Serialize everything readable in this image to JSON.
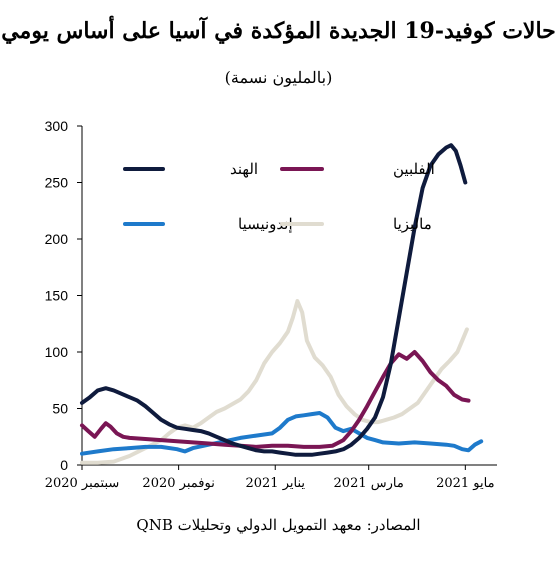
{
  "chart_data": {
    "type": "line",
    "title": "حالات كوفيد-19 الجديدة المؤكدة في آسيا على أساس يومي",
    "subtitle": "(بالمليون نسمة)",
    "source": "المصادر: معهد التمويل الدولي وتحليلات QNB",
    "xlabel": "",
    "ylabel": "",
    "ylim": [
      0,
      300
    ],
    "yticks": [
      0,
      50,
      100,
      150,
      200,
      250,
      300
    ],
    "xticks": [
      {
        "x": 0,
        "label": "سبتمبر 2020"
      },
      {
        "x": 61,
        "label": "نوفمبر 2020"
      },
      {
        "x": 122,
        "label": "يناير 2021"
      },
      {
        "x": 181,
        "label": "مارس 2021"
      },
      {
        "x": 242,
        "label": "مايو 2021"
      }
    ],
    "x_domain": [
      0,
      262
    ],
    "legend_placement": "top",
    "series": [
      {
        "name": "الهند",
        "color": "#0f1b3d",
        "points": [
          [
            0,
            55
          ],
          [
            5,
            60
          ],
          [
            10,
            66
          ],
          [
            15,
            68
          ],
          [
            20,
            66
          ],
          [
            25,
            63
          ],
          [
            30,
            60
          ],
          [
            35,
            57
          ],
          [
            40,
            52
          ],
          [
            45,
            46
          ],
          [
            50,
            40
          ],
          [
            55,
            36
          ],
          [
            60,
            33
          ],
          [
            65,
            32
          ],
          [
            70,
            31
          ],
          [
            75,
            30
          ],
          [
            80,
            28
          ],
          [
            85,
            25
          ],
          [
            90,
            22
          ],
          [
            95,
            19
          ],
          [
            100,
            17
          ],
          [
            105,
            15
          ],
          [
            110,
            13
          ],
          [
            115,
            12
          ],
          [
            120,
            12
          ],
          [
            125,
            11
          ],
          [
            130,
            10
          ],
          [
            135,
            9
          ],
          [
            140,
            9
          ],
          [
            145,
            9
          ],
          [
            150,
            10
          ],
          [
            155,
            11
          ],
          [
            160,
            12
          ],
          [
            165,
            14
          ],
          [
            170,
            18
          ],
          [
            175,
            24
          ],
          [
            180,
            32
          ],
          [
            185,
            42
          ],
          [
            190,
            60
          ],
          [
            195,
            90
          ],
          [
            200,
            130
          ],
          [
            205,
            170
          ],
          [
            210,
            210
          ],
          [
            215,
            245
          ],
          [
            220,
            265
          ],
          [
            225,
            275
          ],
          [
            230,
            281
          ],
          [
            233,
            283
          ],
          [
            236,
            278
          ],
          [
            239,
            265
          ],
          [
            242,
            250
          ]
        ]
      },
      {
        "name": "الفلبين",
        "color": "#7a1654",
        "points": [
          [
            0,
            35
          ],
          [
            4,
            30
          ],
          [
            8,
            25
          ],
          [
            12,
            32
          ],
          [
            15,
            37
          ],
          [
            18,
            34
          ],
          [
            22,
            28
          ],
          [
            26,
            25
          ],
          [
            30,
            24
          ],
          [
            40,
            23
          ],
          [
            50,
            22
          ],
          [
            60,
            21
          ],
          [
            70,
            20
          ],
          [
            80,
            19
          ],
          [
            90,
            18
          ],
          [
            100,
            17
          ],
          [
            110,
            16
          ],
          [
            120,
            17
          ],
          [
            130,
            17
          ],
          [
            140,
            16
          ],
          [
            150,
            16
          ],
          [
            158,
            17
          ],
          [
            165,
            22
          ],
          [
            170,
            30
          ],
          [
            175,
            40
          ],
          [
            180,
            52
          ],
          [
            185,
            65
          ],
          [
            190,
            78
          ],
          [
            195,
            90
          ],
          [
            200,
            98
          ],
          [
            205,
            94
          ],
          [
            210,
            100
          ],
          [
            215,
            92
          ],
          [
            220,
            82
          ],
          [
            225,
            75
          ],
          [
            230,
            70
          ],
          [
            235,
            62
          ],
          [
            240,
            58
          ],
          [
            244,
            57
          ]
        ]
      },
      {
        "name": "إندونيسيا",
        "color": "#1e7acb",
        "points": [
          [
            0,
            10
          ],
          [
            10,
            12
          ],
          [
            20,
            14
          ],
          [
            30,
            15
          ],
          [
            40,
            16
          ],
          [
            50,
            16
          ],
          [
            60,
            14
          ],
          [
            65,
            12
          ],
          [
            70,
            15
          ],
          [
            80,
            18
          ],
          [
            90,
            21
          ],
          [
            100,
            24
          ],
          [
            110,
            26
          ],
          [
            120,
            28
          ],
          [
            125,
            33
          ],
          [
            130,
            40
          ],
          [
            135,
            43
          ],
          [
            140,
            44
          ],
          [
            145,
            45
          ],
          [
            150,
            46
          ],
          [
            155,
            42
          ],
          [
            160,
            33
          ],
          [
            165,
            30
          ],
          [
            170,
            32
          ],
          [
            175,
            28
          ],
          [
            180,
            24
          ],
          [
            185,
            22
          ],
          [
            190,
            20
          ],
          [
            200,
            19
          ],
          [
            210,
            20
          ],
          [
            220,
            19
          ],
          [
            230,
            18
          ],
          [
            235,
            17
          ],
          [
            240,
            14
          ],
          [
            244,
            13
          ],
          [
            248,
            18
          ],
          [
            252,
            21
          ]
        ]
      },
      {
        "name": "ماليزيا",
        "color": "#e0dcd0",
        "points": [
          [
            0,
            2
          ],
          [
            10,
            2
          ],
          [
            20,
            3
          ],
          [
            30,
            8
          ],
          [
            40,
            15
          ],
          [
            50,
            22
          ],
          [
            55,
            28
          ],
          [
            60,
            33
          ],
          [
            65,
            35
          ],
          [
            70,
            33
          ],
          [
            75,
            37
          ],
          [
            80,
            42
          ],
          [
            85,
            47
          ],
          [
            90,
            50
          ],
          [
            95,
            54
          ],
          [
            100,
            58
          ],
          [
            105,
            65
          ],
          [
            110,
            75
          ],
          [
            115,
            90
          ],
          [
            120,
            100
          ],
          [
            125,
            108
          ],
          [
            130,
            118
          ],
          [
            133,
            130
          ],
          [
            136,
            145
          ],
          [
            139,
            135
          ],
          [
            142,
            110
          ],
          [
            147,
            95
          ],
          [
            152,
            88
          ],
          [
            157,
            78
          ],
          [
            162,
            62
          ],
          [
            167,
            52
          ],
          [
            172,
            45
          ],
          [
            177,
            40
          ],
          [
            182,
            38
          ],
          [
            187,
            38
          ],
          [
            192,
            40
          ],
          [
            197,
            42
          ],
          [
            202,
            45
          ],
          [
            207,
            50
          ],
          [
            212,
            55
          ],
          [
            217,
            65
          ],
          [
            222,
            75
          ],
          [
            227,
            85
          ],
          [
            232,
            92
          ],
          [
            237,
            100
          ],
          [
            240,
            110
          ],
          [
            243,
            120
          ]
        ]
      }
    ]
  }
}
